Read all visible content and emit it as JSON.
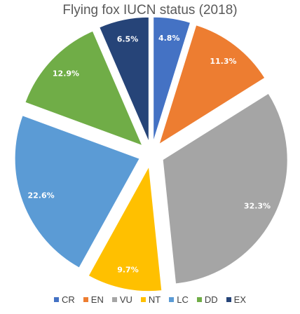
{
  "chart_data": {
    "type": "pie",
    "title": "Flying fox IUCN status (2018)",
    "categories": [
      "CR",
      "EN",
      "VU",
      "NT",
      "LC",
      "DD",
      "EX"
    ],
    "values": [
      4.8,
      11.3,
      32.3,
      9.7,
      22.6,
      12.9,
      6.5
    ],
    "labels": [
      "4.8%",
      "11.3%",
      "32.3%",
      "9.7%",
      "22.6%",
      "12.9%",
      "6.5%"
    ],
    "colors": [
      "#4472C4",
      "#ED7D31",
      "#A5A5A5",
      "#FFC000",
      "#5B9BD5",
      "#70AD47",
      "#264478"
    ],
    "legend_position": "bottom",
    "exploded": true
  }
}
